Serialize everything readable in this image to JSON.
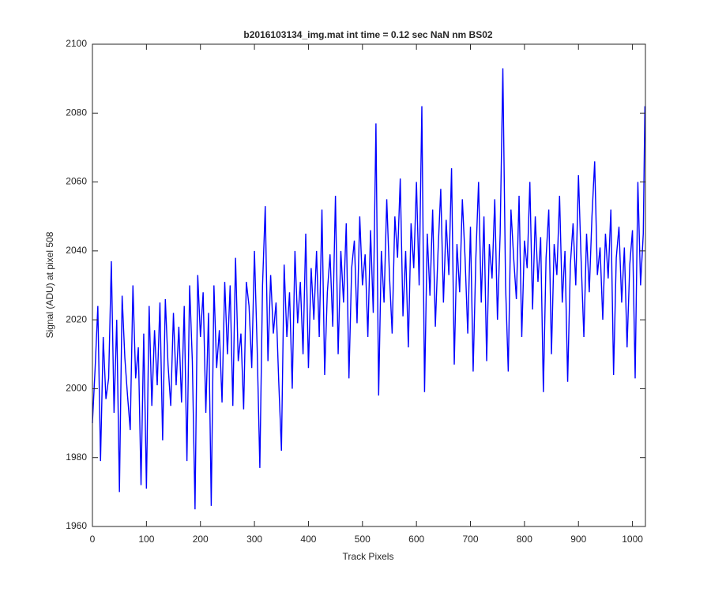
{
  "chart_data": {
    "type": "line",
    "title": "b2016103134_img.mat int time = 0.12 sec  NaN nm BS02",
    "xlabel": "Track Pixels",
    "ylabel": "Signal (ADU) at pixel 508",
    "x": [
      0,
      5,
      10,
      15,
      20,
      25,
      30,
      35,
      40,
      45,
      50,
      55,
      60,
      65,
      70,
      75,
      80,
      85,
      90,
      95,
      100,
      105,
      110,
      115,
      120,
      125,
      130,
      135,
      140,
      145,
      150,
      155,
      160,
      165,
      170,
      175,
      180,
      185,
      190,
      195,
      200,
      205,
      210,
      215,
      220,
      225,
      230,
      235,
      240,
      245,
      250,
      255,
      260,
      265,
      270,
      275,
      280,
      285,
      290,
      295,
      300,
      305,
      310,
      315,
      320,
      325,
      330,
      335,
      340,
      345,
      350,
      355,
      360,
      365,
      370,
      375,
      380,
      385,
      390,
      395,
      400,
      405,
      410,
      415,
      420,
      425,
      430,
      435,
      440,
      445,
      450,
      455,
      460,
      465,
      470,
      475,
      480,
      485,
      490,
      495,
      500,
      505,
      510,
      515,
      520,
      525,
      530,
      535,
      540,
      545,
      550,
      555,
      560,
      565,
      570,
      575,
      580,
      585,
      590,
      595,
      600,
      605,
      610,
      615,
      620,
      625,
      630,
      635,
      640,
      645,
      650,
      655,
      660,
      665,
      670,
      675,
      680,
      685,
      690,
      695,
      700,
      705,
      710,
      715,
      720,
      725,
      730,
      735,
      740,
      745,
      750,
      755,
      760,
      765,
      770,
      775,
      780,
      785,
      790,
      795,
      800,
      805,
      810,
      815,
      820,
      825,
      830,
      835,
      840,
      845,
      850,
      855,
      860,
      865,
      870,
      875,
      880,
      885,
      890,
      895,
      900,
      905,
      910,
      915,
      920,
      925,
      930,
      935,
      940,
      945,
      950,
      955,
      960,
      965,
      970,
      975,
      980,
      985,
      990,
      995,
      1000,
      1005,
      1010,
      1015,
      1020,
      1023
    ],
    "series": [
      {
        "name": "signal",
        "color": "#0000ff",
        "values": [
          1990,
          2006,
          2024,
          1979,
          2015,
          1997,
          2003,
          2037,
          1993,
          2020,
          1970,
          2027,
          2009,
          1998,
          1988,
          2030,
          2003,
          2012,
          1972,
          2016,
          1971,
          2024,
          1995,
          2017,
          2001,
          2025,
          1985,
          2026,
          2007,
          1995,
          2022,
          2001,
          2018,
          1996,
          2024,
          1979,
          2030,
          2008,
          1965,
          2033,
          2015,
          2028,
          1993,
          2022,
          1966,
          2030,
          2006,
          2017,
          1996,
          2031,
          2010,
          2030,
          1995,
          2038,
          2008,
          2016,
          1994,
          2031,
          2024,
          2006,
          2040,
          2012,
          1977,
          2030,
          2053,
          2008,
          2033,
          2016,
          2025,
          2002,
          1982,
          2036,
          2015,
          2028,
          2000,
          2040,
          2019,
          2031,
          2010,
          2045,
          2006,
          2035,
          2020,
          2040,
          2015,
          2052,
          2004,
          2028,
          2039,
          2018,
          2056,
          2010,
          2040,
          2025,
          2048,
          2003,
          2035,
          2043,
          2019,
          2050,
          2030,
          2039,
          2015,
          2046,
          2022,
          2077,
          1998,
          2040,
          2025,
          2055,
          2033,
          2016,
          2050,
          2038,
          2061,
          2021,
          2040,
          2012,
          2048,
          2035,
          2060,
          2030,
          2082,
          1999,
          2045,
          2027,
          2052,
          2018,
          2040,
          2058,
          2025,
          2049,
          2033,
          2064,
          2007,
          2042,
          2028,
          2055,
          2038,
          2016,
          2047,
          2005,
          2038,
          2060,
          2025,
          2050,
          2008,
          2042,
          2032,
          2055,
          2020,
          2045,
          2093,
          2030,
          2005,
          2052,
          2038,
          2026,
          2056,
          2015,
          2043,
          2035,
          2060,
          2023,
          2050,
          2031,
          2044,
          1999,
          2038,
          2052,
          2010,
          2042,
          2033,
          2056,
          2025,
          2040,
          2002,
          2036,
          2048,
          2030,
          2062,
          2037,
          2015,
          2045,
          2028,
          2050,
          2066,
          2033,
          2041,
          2020,
          2045,
          2032,
          2052,
          2004,
          2038,
          2047,
          2025,
          2041,
          2012,
          2036,
          2046,
          2003,
          2060,
          2030,
          2045,
          2082
        ]
      }
    ],
    "xlim": [
      0,
      1024
    ],
    "ylim": [
      1960,
      2100
    ],
    "xticks": [
      0,
      100,
      200,
      300,
      400,
      500,
      600,
      700,
      800,
      900,
      1000
    ],
    "yticks": [
      1960,
      1980,
      2000,
      2020,
      2040,
      2060,
      2080,
      2100
    ]
  }
}
